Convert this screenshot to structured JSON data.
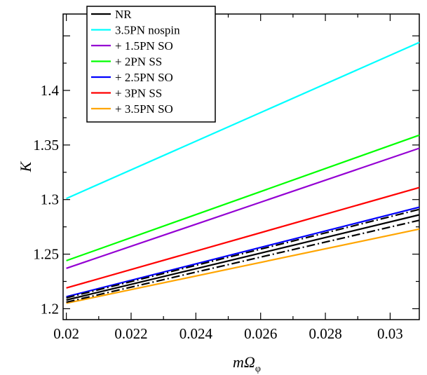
{
  "chart_data": {
    "type": "line",
    "xlabel": "mΩ",
    "xlabel_subscript": "φ",
    "ylabel": "K",
    "xlim": [
      0.0199,
      0.0309
    ],
    "ylim": [
      1.19,
      1.47
    ],
    "x_ticks": [
      0.02,
      0.022,
      0.024,
      0.026,
      0.028,
      0.03
    ],
    "x_tick_labels": [
      "0.02",
      "0.022",
      "0.024",
      "0.026",
      "0.028",
      "0.03"
    ],
    "y_ticks": [
      1.2,
      1.25,
      1.3,
      1.35,
      1.4
    ],
    "y_tick_labels": [
      "1.2",
      "1.25",
      "1.3",
      "1.35",
      "1.4"
    ],
    "grid": false,
    "legend_position": "top-left",
    "series": [
      {
        "name": "NR",
        "color": "#000000",
        "style": "solid",
        "x": [
          0.02,
          0.0309
        ],
        "y": [
          1.208,
          1.286
        ]
      },
      {
        "name": "3.5PN nospin",
        "color": "#00ffff",
        "style": "solid",
        "x": [
          0.02,
          0.0309
        ],
        "y": [
          1.301,
          1.444
        ]
      },
      {
        "name": "+ 1.5PN SO",
        "color": "#9400d3",
        "style": "solid",
        "x": [
          0.02,
          0.0309
        ],
        "y": [
          1.237,
          1.347
        ]
      },
      {
        "name": "+ 2PN SS",
        "color": "#00ff00",
        "style": "solid",
        "x": [
          0.02,
          0.0309
        ],
        "y": [
          1.244,
          1.359
        ]
      },
      {
        "name": "+ 2.5PN SO",
        "color": "#0000ff",
        "style": "solid",
        "x": [
          0.02,
          0.0309
        ],
        "y": [
          1.211,
          1.293
        ]
      },
      {
        "name": "+ 3PN SS",
        "color": "#ff0000",
        "style": "solid",
        "x": [
          0.02,
          0.0309
        ],
        "y": [
          1.219,
          1.311
        ]
      },
      {
        "name": "+ 3.5PN SO",
        "color": "#ffa500",
        "style": "solid",
        "x": [
          0.02,
          0.0309
        ],
        "y": [
          1.205,
          1.273
        ]
      },
      {
        "color": "#000000",
        "style": "dashdot",
        "x": [
          0.02,
          0.0309
        ],
        "y": [
          1.21,
          1.291
        ]
      },
      {
        "color": "#000000",
        "style": "dashdot",
        "x": [
          0.02,
          0.0309
        ],
        "y": [
          1.206,
          1.281
        ]
      }
    ]
  }
}
